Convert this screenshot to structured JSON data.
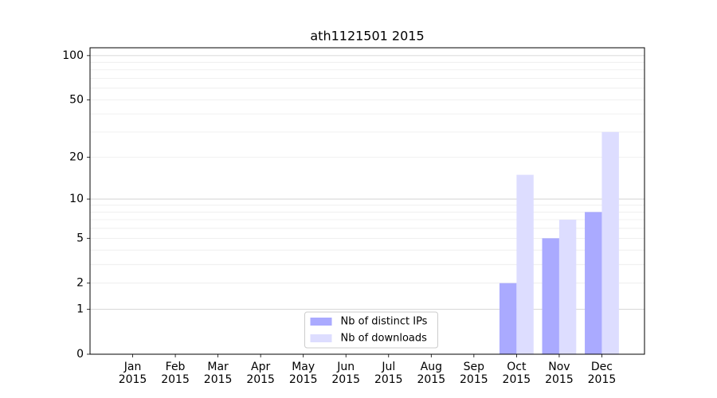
{
  "chart_data": {
    "type": "bar",
    "title": "ath1121501 2015",
    "categories": [
      "Jan\n2015",
      "Feb\n2015",
      "Mar\n2015",
      "Apr\n2015",
      "May\n2015",
      "Jun\n2015",
      "Jul\n2015",
      "Aug\n2015",
      "Sep\n2015",
      "Oct\n2015",
      "Nov\n2015",
      "Dec\n2015"
    ],
    "series": [
      {
        "name": "Nb of distinct IPs",
        "color": "#aaaaff",
        "values": [
          0,
          0,
          0,
          0,
          0,
          0,
          0,
          0,
          0,
          2,
          5,
          8
        ]
      },
      {
        "name": "Nb of downloads",
        "color": "#ddddff",
        "values": [
          0,
          0,
          0,
          0,
          0,
          0,
          0,
          0,
          0,
          15,
          7,
          30
        ]
      }
    ],
    "yscale": "log1p",
    "ylim": [
      0,
      113
    ],
    "yticks": [
      0,
      1,
      2,
      5,
      10,
      20,
      50,
      100
    ],
    "minor_yticks": [
      3,
      4,
      6,
      7,
      8,
      9,
      30,
      40,
      60,
      70,
      80,
      90
    ],
    "grid": true,
    "legend": "lower center"
  }
}
